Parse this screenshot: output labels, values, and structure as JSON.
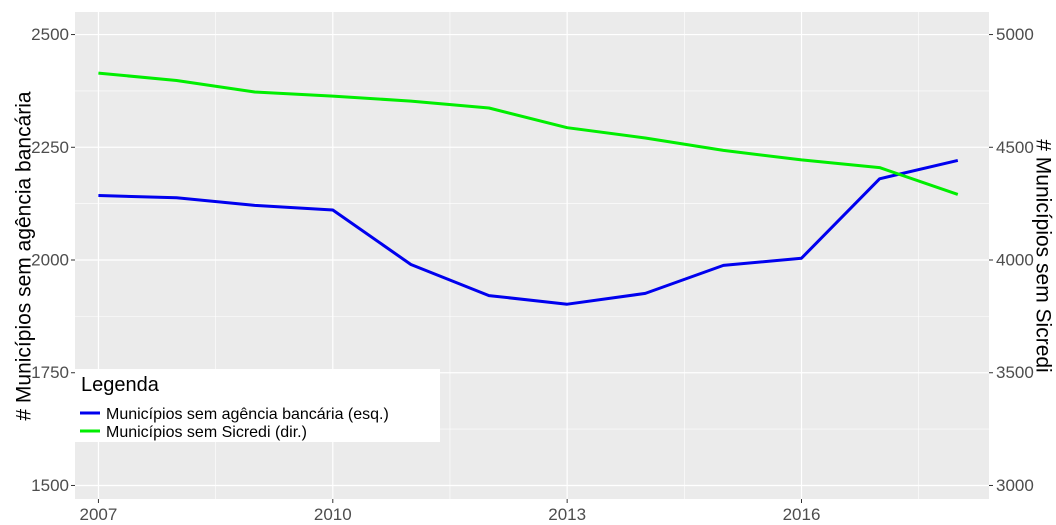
{
  "chart_data": {
    "type": "line",
    "x": [
      2007,
      2008,
      2009,
      2010,
      2011,
      2012,
      2013,
      2014,
      2015,
      2016,
      2017,
      2018
    ],
    "series": [
      {
        "name": "Municípios sem agência bancária (esq.)",
        "axis": "left",
        "color": "#0000ee",
        "values": [
          2143,
          2138,
          2121,
          2111,
          1990,
          1921,
          1902,
          1926,
          1988,
          2004,
          2180,
          2221
        ]
      },
      {
        "name": "Municípios sem Sicredi (dir.)",
        "axis": "right",
        "color": "#00ee00",
        "values": [
          4829,
          4796,
          4745,
          4727,
          4705,
          4674,
          4587,
          4541,
          4486,
          4444,
          4410,
          4291
        ]
      }
    ],
    "ylabel_left": "# Municípios sem agência bancária",
    "ylabel_right": "# Municípios sem Sicredi",
    "ylim_left": [
      1470,
      2550
    ],
    "ylim_right": [
      2940,
      5100
    ],
    "xlim": [
      2006.7,
      2018.4
    ],
    "x_ticks": [
      "2007",
      "2010",
      "2013",
      "2016"
    ],
    "y_ticks_left": [
      "1500",
      "1750",
      "2000",
      "2250",
      "2500"
    ],
    "y_ticks_right": [
      "3000",
      "3500",
      "4000",
      "4500",
      "5000"
    ],
    "grid": true,
    "legend": {
      "title": "Legenda",
      "position": "bottom-left"
    }
  }
}
